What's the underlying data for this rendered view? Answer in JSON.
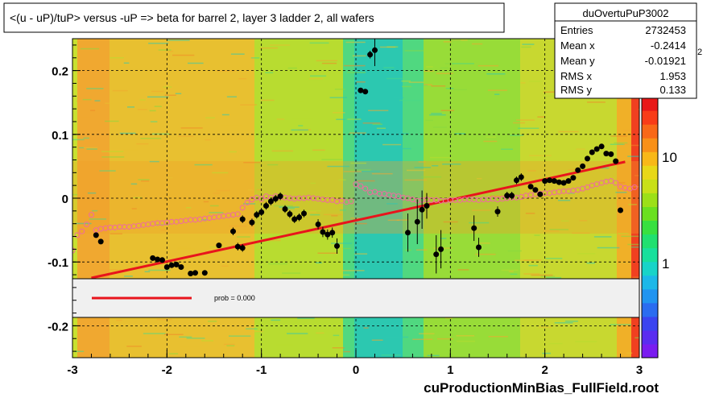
{
  "page": {
    "title": "<(u - uP)/tuP> versus  -uP => beta for barrel 2, layer 3 ladder 2, all wafers",
    "footer": "cuProductionMinBias_FullField.root"
  },
  "stats": {
    "name": "duOvertuPuP3002",
    "rows": [
      {
        "label": "Entries",
        "value": "2732453"
      },
      {
        "label": "Mean x",
        "value": "-0.2414"
      },
      {
        "label": "Mean y",
        "value": "-0.01921"
      },
      {
        "label": "RMS x",
        "value": "1.953"
      },
      {
        "label": "RMS y",
        "value": "0.133"
      }
    ]
  },
  "legend": {
    "prob_text": "prob = 0.000",
    "line_color": "#e8141c"
  },
  "colorbar": {
    "tick_labels": [
      "1",
      "10"
    ],
    "exponent_fragment": "2",
    "colors": [
      "#7a1cf0",
      "#5a2cf0",
      "#3a44f0",
      "#2a6cf0",
      "#2094f0",
      "#1cb8e8",
      "#18d4c8",
      "#18e09c",
      "#20e070",
      "#38e040",
      "#6ae020",
      "#9ce018",
      "#c8e018",
      "#e8d818",
      "#f8b818",
      "#f89018",
      "#f86818",
      "#f83c18",
      "#e81818"
    ]
  },
  "colors": {
    "profile_points": "#000000",
    "open_markers": "#f06aa0",
    "fit_line": "#e8141c",
    "legend_box_fill": "#f0f0f0"
  },
  "chart_data": {
    "type": "scatter",
    "title": "<(u - uP)/tuP> versus  -uP => beta for barrel 2, layer 3 ladder 2, all wafers",
    "xlabel": "",
    "ylabel": "",
    "xlim": [
      -3,
      3
    ],
    "ylim": [
      -0.25,
      0.25
    ],
    "x_ticks": [
      -3,
      -2,
      -1,
      0,
      1,
      2,
      3
    ],
    "y_ticks": [
      -0.2,
      -0.1,
      0,
      0.1,
      0.2
    ],
    "x_tick_labels": [
      "-3",
      "-2",
      "-1",
      "0",
      "1",
      "2",
      "3"
    ],
    "y_tick_labels": [
      "-0.2",
      "-0.1",
      "0",
      "0.1",
      "0.2"
    ],
    "grid": true,
    "fit_line": {
      "x": [
        -2.8,
        2.85
      ],
      "y": [
        -0.125,
        0.057
      ]
    },
    "series": [
      {
        "marker": "filled-circle-with-error-bars",
        "points": [
          [
            -2.75,
            -0.058,
            0.004
          ],
          [
            -2.7,
            -0.068,
            0.004
          ],
          [
            -2.15,
            -0.094,
            0.004
          ],
          [
            -2.1,
            -0.096,
            0.004
          ],
          [
            -2.05,
            -0.097,
            0.004
          ],
          [
            -2.0,
            -0.108,
            0.004
          ],
          [
            -1.95,
            -0.105,
            0.004
          ],
          [
            -1.9,
            -0.104,
            0.004
          ],
          [
            -1.85,
            -0.108,
            0.004
          ],
          [
            -1.75,
            -0.118,
            0.004
          ],
          [
            -1.7,
            -0.117,
            0.004
          ],
          [
            -1.6,
            -0.117,
            0.004
          ],
          [
            -1.45,
            -0.074,
            0.004
          ],
          [
            -1.3,
            -0.052,
            0.006
          ],
          [
            -1.25,
            -0.076,
            0.006
          ],
          [
            -1.2,
            -0.078,
            0.006
          ],
          [
            -1.2,
            -0.033,
            0.006
          ],
          [
            -1.1,
            -0.038,
            0.006
          ],
          [
            -1.05,
            -0.026,
            0.006
          ],
          [
            -1.0,
            -0.022,
            0.006
          ],
          [
            -0.95,
            -0.012,
            0.006
          ],
          [
            -0.9,
            -0.005,
            0.006
          ],
          [
            -0.85,
            -0.001,
            0.006
          ],
          [
            -0.8,
            0.003,
            0.006
          ],
          [
            -0.75,
            -0.017,
            0.006
          ],
          [
            -0.7,
            -0.025,
            0.006
          ],
          [
            -0.65,
            -0.033,
            0.006
          ],
          [
            -0.6,
            -0.03,
            0.006
          ],
          [
            -0.55,
            -0.024,
            0.006
          ],
          [
            -0.4,
            -0.041,
            0.008
          ],
          [
            -0.35,
            -0.053,
            0.008
          ],
          [
            -0.3,
            -0.057,
            0.008
          ],
          [
            -0.25,
            -0.054,
            0.008
          ],
          [
            -0.2,
            -0.075,
            0.012
          ],
          [
            0.05,
            0.169,
            0.004
          ],
          [
            0.1,
            0.167,
            0.004
          ],
          [
            0.15,
            0.225,
            0.006
          ],
          [
            0.2,
            0.232,
            0.025
          ],
          [
            0.55,
            -0.054,
            0.03
          ],
          [
            0.65,
            -0.037,
            0.035
          ],
          [
            0.7,
            -0.018,
            0.03
          ],
          [
            0.75,
            -0.012,
            0.02
          ],
          [
            0.85,
            -0.088,
            0.03
          ],
          [
            0.9,
            -0.08,
            0.03
          ],
          [
            1.25,
            -0.047,
            0.02
          ],
          [
            1.3,
            -0.077,
            0.015
          ],
          [
            1.5,
            -0.021,
            0.008
          ],
          [
            1.6,
            0.004,
            0.006
          ],
          [
            1.65,
            0.004,
            0.006
          ],
          [
            1.7,
            0.028,
            0.006
          ],
          [
            1.75,
            0.033,
            0.006
          ],
          [
            1.85,
            0.018,
            0.004
          ],
          [
            1.9,
            0.013,
            0.004
          ],
          [
            1.95,
            0.006,
            0.004
          ],
          [
            2.0,
            0.027,
            0.004
          ],
          [
            2.05,
            0.028,
            0.004
          ],
          [
            2.1,
            0.027,
            0.004
          ],
          [
            2.15,
            0.025,
            0.004
          ],
          [
            2.2,
            0.024,
            0.004
          ],
          [
            2.25,
            0.027,
            0.004
          ],
          [
            2.3,
            0.032,
            0.004
          ],
          [
            2.35,
            0.044,
            0.004
          ],
          [
            2.4,
            0.05,
            0.004
          ],
          [
            2.45,
            0.062,
            0.004
          ],
          [
            2.5,
            0.072,
            0.004
          ],
          [
            2.55,
            0.077,
            0.004
          ],
          [
            2.6,
            0.081,
            0.004
          ],
          [
            2.65,
            0.07,
            0.004
          ],
          [
            2.7,
            0.069,
            0.004
          ],
          [
            2.75,
            0.058,
            0.004
          ],
          [
            2.8,
            -0.019,
            0.004
          ]
        ]
      },
      {
        "marker": "open-circle",
        "points": [
          [
            -3.0,
            -0.082
          ],
          [
            -2.95,
            -0.058
          ],
          [
            -2.9,
            -0.052
          ],
          [
            -2.85,
            -0.041
          ],
          [
            -2.8,
            -0.026
          ],
          [
            -2.75,
            -0.05
          ],
          [
            -2.7,
            -0.048
          ],
          [
            -2.65,
            -0.047
          ],
          [
            -2.6,
            -0.046
          ],
          [
            -2.55,
            -0.046
          ],
          [
            -2.5,
            -0.045
          ],
          [
            -2.45,
            -0.045
          ],
          [
            -2.4,
            -0.045
          ],
          [
            -2.35,
            -0.044
          ],
          [
            -2.3,
            -0.043
          ],
          [
            -2.25,
            -0.042
          ],
          [
            -2.2,
            -0.041
          ],
          [
            -2.15,
            -0.04
          ],
          [
            -2.1,
            -0.039
          ],
          [
            -2.05,
            -0.039
          ],
          [
            -2.0,
            -0.038
          ],
          [
            -1.95,
            -0.037
          ],
          [
            -1.9,
            -0.037
          ],
          [
            -1.85,
            -0.036
          ],
          [
            -1.8,
            -0.035
          ],
          [
            -1.75,
            -0.034
          ],
          [
            -1.7,
            -0.034
          ],
          [
            -1.65,
            -0.033
          ],
          [
            -1.6,
            -0.032
          ],
          [
            -1.55,
            -0.031
          ],
          [
            -1.5,
            -0.03
          ],
          [
            -1.45,
            -0.029
          ],
          [
            -1.4,
            -0.028
          ],
          [
            -1.35,
            -0.027
          ],
          [
            -1.3,
            -0.026
          ],
          [
            -1.25,
            -0.025
          ],
          [
            -1.2,
            -0.015
          ],
          [
            -1.15,
            -0.007
          ],
          [
            -1.1,
            -0.002
          ],
          [
            -1.05,
            0.001
          ],
          [
            -1.0,
            -0.001
          ],
          [
            -0.95,
            0.003
          ],
          [
            -0.9,
            0.001
          ],
          [
            -0.85,
            0.003
          ],
          [
            -0.8,
            0.002
          ],
          [
            -0.75,
            0.001
          ],
          [
            -0.7,
            0.0
          ],
          [
            -0.65,
            -0.001
          ],
          [
            -0.6,
            0.0
          ],
          [
            -0.55,
            0.0
          ],
          [
            -0.5,
            0.001
          ],
          [
            -0.45,
            0.0
          ],
          [
            -0.4,
            -0.001
          ],
          [
            -0.35,
            -0.002
          ],
          [
            -0.3,
            -0.003
          ],
          [
            -0.25,
            -0.003
          ],
          [
            -0.2,
            -0.005
          ],
          [
            -0.15,
            -0.004
          ],
          [
            -0.1,
            -0.006
          ],
          [
            -0.05,
            -0.005
          ],
          [
            0.0,
            0.022
          ],
          [
            0.05,
            0.019
          ],
          [
            0.1,
            0.015
          ],
          [
            0.15,
            0.009
          ],
          [
            0.2,
            0.01
          ],
          [
            0.25,
            0.007
          ],
          [
            0.3,
            0.007
          ],
          [
            0.35,
            0.005
          ],
          [
            0.4,
            0.004
          ],
          [
            0.45,
            0.003
          ],
          [
            0.5,
            0.001
          ],
          [
            0.55,
            0.0
          ],
          [
            0.6,
            -0.002
          ],
          [
            0.65,
            -0.004
          ],
          [
            0.7,
            -0.003
          ],
          [
            0.75,
            -0.002
          ],
          [
            0.8,
            -0.003
          ],
          [
            0.85,
            -0.003
          ],
          [
            0.9,
            -0.004
          ],
          [
            0.95,
            -0.004
          ],
          [
            1.0,
            -0.003
          ],
          [
            1.05,
            -0.003
          ],
          [
            1.1,
            -0.003
          ],
          [
            1.15,
            -0.002
          ],
          [
            1.2,
            -0.002
          ],
          [
            1.25,
            -0.002
          ],
          [
            1.3,
            -0.003
          ],
          [
            1.35,
            -0.002
          ],
          [
            1.4,
            -0.002
          ],
          [
            1.45,
            -0.001
          ],
          [
            1.5,
            -0.002
          ],
          [
            1.55,
            -0.001
          ],
          [
            1.6,
            0.0
          ],
          [
            1.65,
            0.001
          ],
          [
            1.7,
            0.001
          ],
          [
            1.75,
            0.002
          ],
          [
            1.8,
            0.004
          ],
          [
            1.85,
            0.005
          ],
          [
            1.9,
            0.006
          ],
          [
            1.95,
            0.007
          ],
          [
            2.0,
            0.008
          ],
          [
            2.05,
            0.008
          ],
          [
            2.1,
            0.009
          ],
          [
            2.15,
            0.01
          ],
          [
            2.2,
            0.011
          ],
          [
            2.25,
            0.011
          ],
          [
            2.3,
            0.012
          ],
          [
            2.35,
            0.013
          ],
          [
            2.4,
            0.015
          ],
          [
            2.45,
            0.017
          ],
          [
            2.5,
            0.02
          ],
          [
            2.55,
            0.022
          ],
          [
            2.6,
            0.024
          ],
          [
            2.65,
            0.026
          ],
          [
            2.7,
            0.027
          ],
          [
            2.75,
            0.024
          ],
          [
            2.8,
            0.018
          ],
          [
            2.85,
            0.016
          ],
          [
            2.9,
            0.015
          ],
          [
            2.95,
            0.017
          ]
        ]
      }
    ]
  }
}
